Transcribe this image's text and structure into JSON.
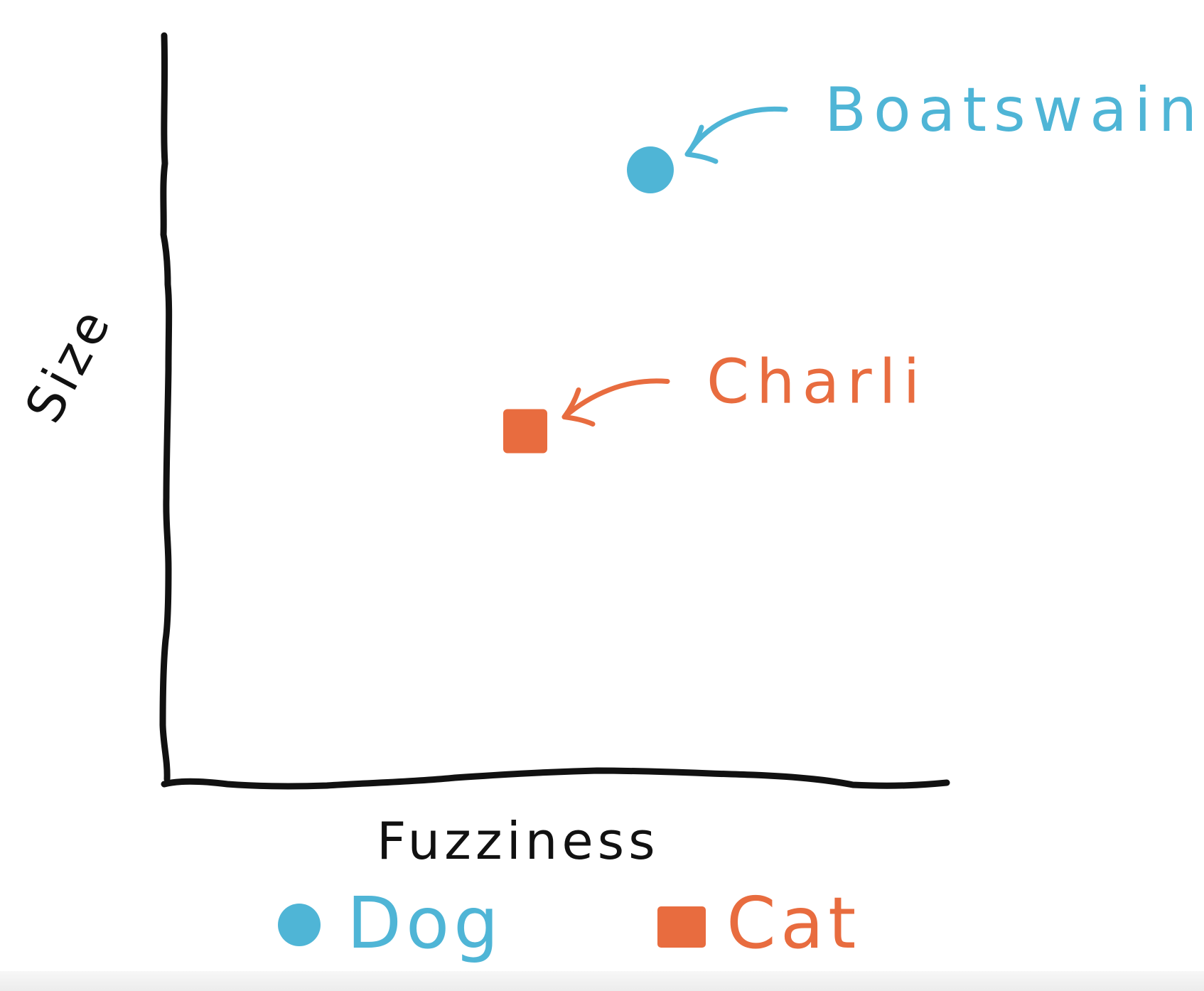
{
  "chart_data": {
    "type": "scatter",
    "title": "",
    "xlabel": "Fuzziness",
    "ylabel": "Size",
    "grid": false,
    "legend_position": "bottom",
    "series": [
      {
        "name": "Dog",
        "marker": "circle",
        "color": "#4fb5d6",
        "points": [
          {
            "label": "Boatswain",
            "x": 0.62,
            "y": 0.82
          }
        ]
      },
      {
        "name": "Cat",
        "marker": "square",
        "color": "#e86c3f",
        "points": [
          {
            "label": "Charli",
            "x": 0.46,
            "y": 0.47
          }
        ]
      }
    ]
  }
}
